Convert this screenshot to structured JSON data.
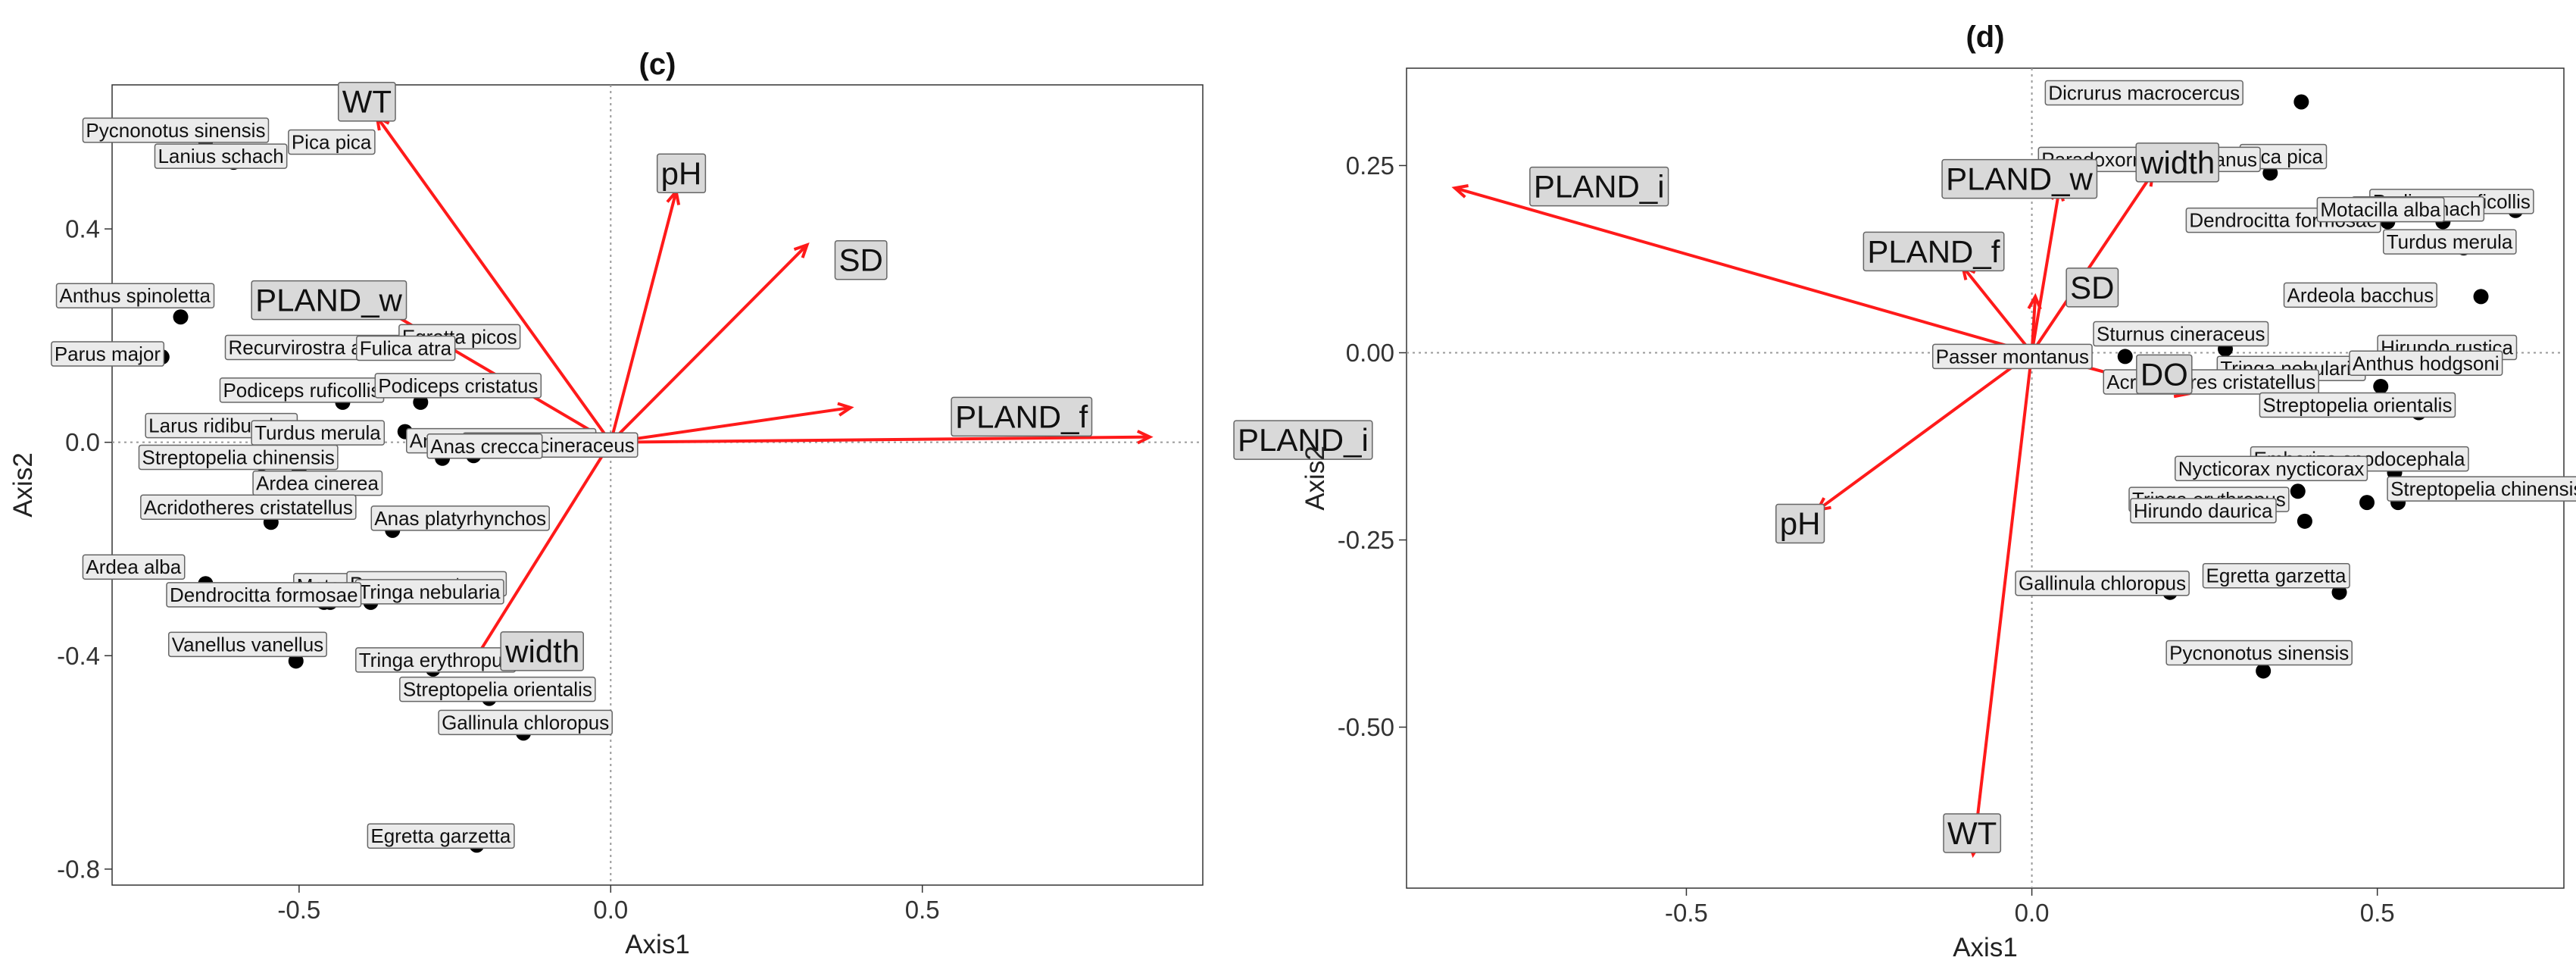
{
  "colors": {
    "arrow": "#ff1a1a",
    "point": "#000000",
    "label_fill": "#ebebeb",
    "label_stroke": "#666666",
    "env_label_fill": "#d9d9d9"
  },
  "chart_data": [
    {
      "type": "scatter",
      "title": "(c)",
      "xlabel": "Axis1",
      "ylabel": "Axis2",
      "xlim": [
        -0.8,
        0.95
      ],
      "ylim": [
        -0.83,
        0.67
      ],
      "xticks": [
        -0.5,
        0.0,
        0.5
      ],
      "xtick_labels": [
        "-0.5",
        "0.0",
        "0.5"
      ],
      "yticks": [
        -0.8,
        -0.4,
        0.0,
        0.4
      ],
      "ytick_labels": [
        "-0.8",
        "-0.4",
        "0.0",
        "0.4"
      ],
      "grid": false,
      "species": [
        {
          "name": "Pycnonotus sinensis",
          "x": -0.65,
          "y": 0.565
        },
        {
          "name": "Lanius schach",
          "x": -0.605,
          "y": 0.525
        },
        {
          "name": "Pica pica",
          "x": -0.5,
          "y": 0.56
        },
        {
          "name": "Anthus spinoletta",
          "x": -0.69,
          "y": 0.235
        },
        {
          "name": "Parus major",
          "x": -0.72,
          "y": 0.16
        },
        {
          "name": "Recurvirostra avosetta",
          "x": -0.56,
          "y": 0.175
        },
        {
          "name": "Egretta picos",
          "x": -0.325,
          "y": 0.195
        },
        {
          "name": "Fulica atra",
          "x": -0.33,
          "y": 0.185
        },
        {
          "name": "Podiceps ruficollis",
          "x": -0.43,
          "y": 0.075
        },
        {
          "name": "Podiceps cristatus",
          "x": -0.305,
          "y": 0.075
        },
        {
          "name": "Larus ridibundus",
          "x": -0.53,
          "y": 0.02
        },
        {
          "name": "Turdus merula",
          "x": -0.445,
          "y": 0.015
        },
        {
          "name": "Anas poecilorhyncha",
          "x": -0.33,
          "y": 0.02
        },
        {
          "name": "Sturnus cineraceus",
          "x": -0.22,
          "y": -0.025
        },
        {
          "name": "Streptopelia chinensis",
          "x": -0.56,
          "y": -0.065
        },
        {
          "name": "Ardea purpurea",
          "x": -0.5,
          "y": -0.055
        },
        {
          "name": "Anas crecca",
          "x": -0.27,
          "y": -0.03
        },
        {
          "name": "Ardea cinerea",
          "x": -0.535,
          "y": -0.105
        },
        {
          "name": "Acridotheres cristatellus",
          "x": -0.545,
          "y": -0.15
        },
        {
          "name": "Anas platyrhynchos",
          "x": -0.35,
          "y": -0.165
        },
        {
          "name": "Ardea alba",
          "x": -0.65,
          "y": -0.265
        },
        {
          "name": "Motacilla alba",
          "x": -0.46,
          "y": -0.3
        },
        {
          "name": "Passer montanus",
          "x": -0.36,
          "y": -0.285
        },
        {
          "name": "Tringa nebularia",
          "x": -0.385,
          "y": -0.3
        },
        {
          "name": "Dendrocitta formosae",
          "x": -0.45,
          "y": -0.3
        },
        {
          "name": "Vanellus vanellus",
          "x": -0.505,
          "y": -0.41
        },
        {
          "name": "Tringa erythropus",
          "x": -0.285,
          "y": -0.425
        },
        {
          "name": "Streptopelia orientalis",
          "x": -0.195,
          "y": -0.48
        },
        {
          "name": "Gallinula chloropus",
          "x": -0.14,
          "y": -0.545
        },
        {
          "name": "Egretta garzetta",
          "x": -0.215,
          "y": -0.755
        }
      ],
      "env_vectors": [
        {
          "name": "WT",
          "x": -0.375,
          "y": 0.61
        },
        {
          "name": "pH",
          "x": 0.105,
          "y": 0.47
        },
        {
          "name": "SD",
          "x": 0.315,
          "y": 0.37
        },
        {
          "name": "PLAND_w",
          "x": -0.4,
          "y": 0.275
        },
        {
          "name": "PLAND_f",
          "x": 0.385,
          "y": 0.065
        },
        {
          "name": "PLAND_i",
          "x": 0.865,
          "y": 0.01
        },
        {
          "name": "width",
          "x": -0.225,
          "y": -0.42
        }
      ]
    },
    {
      "type": "scatter",
      "title": "(d)",
      "xlabel": "Axis1",
      "ylabel": "Axis2",
      "xlim": [
        -0.905,
        0.77
      ],
      "ylim": [
        -0.715,
        0.38
      ],
      "xticks": [
        -0.5,
        0.0,
        0.5
      ],
      "xtick_labels": [
        "-0.5",
        "0.0",
        "0.5"
      ],
      "yticks": [
        -0.5,
        -0.25,
        0.0,
        0.25
      ],
      "ytick_labels": [
        "-0.50",
        "-0.25",
        "0.00",
        "0.25"
      ],
      "grid": false,
      "species": [
        {
          "name": "Dicrurus macrocercus",
          "x": 0.39,
          "y": 0.335
        },
        {
          "name": "Pica pica",
          "x": 0.4,
          "y": 0.26
        },
        {
          "name": "Paradoxornis webbianus",
          "x": 0.345,
          "y": 0.24
        },
        {
          "name": "Podiceps ruficollis",
          "x": 0.59,
          "y": 0.2
        },
        {
          "name": "Lanius schach",
          "x": 0.7,
          "y": 0.19
        },
        {
          "name": "Dendrocitta formosae",
          "x": 0.515,
          "y": 0.175
        },
        {
          "name": "Motacilla alba",
          "x": 0.595,
          "y": 0.175
        },
        {
          "name": "Turdus merula",
          "x": 0.625,
          "y": 0.14
        },
        {
          "name": "Ardeola bacchus",
          "x": 0.65,
          "y": 0.075
        },
        {
          "name": "Sturnus cineraceus",
          "x": 0.28,
          "y": 0.005
        },
        {
          "name": "Hirundo rustica",
          "x": 0.575,
          "y": 0.005
        },
        {
          "name": "Passer montanus",
          "x": 0.135,
          "y": -0.005
        },
        {
          "name": "Tringa nebularia",
          "x": 0.47,
          "y": -0.025
        },
        {
          "name": "Anthus hodgsoni",
          "x": 0.6,
          "y": -0.02
        },
        {
          "name": "Anthus hodgsoni",
          "x": 0.63,
          "y": -0.02
        },
        {
          "name": "Acridotheres cristatellus",
          "x": 0.505,
          "y": -0.045
        },
        {
          "name": "Streptopelia orientalis",
          "x": 0.56,
          "y": -0.08
        },
        {
          "name": "Emberiza spodocephala",
          "x": 0.525,
          "y": -0.16
        },
        {
          "name": "Nycticorax nycticorax",
          "x": 0.385,
          "y": -0.185
        },
        {
          "name": "Tringa erythropus",
          "x": 0.485,
          "y": -0.2
        },
        {
          "name": "Streptopelia chinensis",
          "x": 0.53,
          "y": -0.2
        },
        {
          "name": "Hirundo daurica",
          "x": 0.395,
          "y": -0.225
        },
        {
          "name": "Gallinula chloropus",
          "x": 0.2,
          "y": -0.32
        },
        {
          "name": "Egretta garzetta",
          "x": 0.445,
          "y": -0.32
        },
        {
          "name": "Pycnonotus sinensis",
          "x": 0.335,
          "y": -0.425
        }
      ],
      "env_vectors": [
        {
          "name": "PLAND_i",
          "x": -0.835,
          "y": 0.22
        },
        {
          "name": "PLAND_w",
          "x": 0.04,
          "y": 0.22
        },
        {
          "name": "width",
          "x": 0.175,
          "y": 0.24
        },
        {
          "name": "PLAND_f",
          "x": -0.1,
          "y": 0.115
        },
        {
          "name": "SD",
          "x": 0.005,
          "y": 0.075
        },
        {
          "name": "DO",
          "x": 0.225,
          "y": -0.055
        },
        {
          "name": "pH",
          "x": -0.31,
          "y": -0.21
        },
        {
          "name": "WT",
          "x": -0.085,
          "y": -0.67
        }
      ]
    }
  ]
}
